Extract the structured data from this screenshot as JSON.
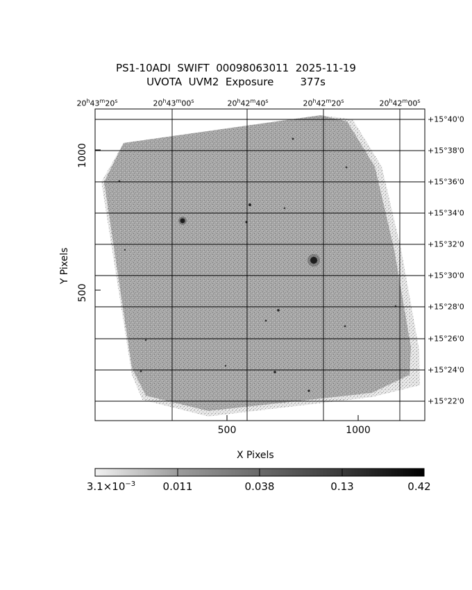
{
  "title": {
    "line1": "PS1-10ADI  SWIFT  00098063011  2025-11-19",
    "line2": "UVOTA  UVM2  Exposure        377s"
  },
  "ra_ticks": [
    {
      "h": "20",
      "m": "43",
      "s": "20"
    },
    {
      "h": "20",
      "m": "43",
      "s": "00"
    },
    {
      "h": "20",
      "m": "42",
      "s": "40"
    },
    {
      "h": "20",
      "m": "42",
      "s": "20"
    },
    {
      "h": "20",
      "m": "42",
      "s": "00"
    }
  ],
  "dec_ticks": [
    "+15°40'0",
    "+15°38'0",
    "+15°36'0",
    "+15°34'0",
    "+15°32'0",
    "+15°30'0",
    "+15°28'0",
    "+15°26'0",
    "+15°24'0",
    "+15°22'0"
  ],
  "x_axis": {
    "label": "X Pixels",
    "ticks": [
      "500",
      "1000"
    ]
  },
  "y_axis": {
    "label": "Y Pixels",
    "ticks": [
      "1000",
      "500"
    ]
  },
  "colorbar": {
    "labels": [
      {
        "mantissa": "3.1×10",
        "exp": "−3"
      },
      {
        "mantissa": "0.011",
        "exp": ""
      },
      {
        "mantissa": "0.038",
        "exp": ""
      },
      {
        "mantissa": "0.13",
        "exp": ""
      },
      {
        "mantissa": "0.42",
        "exp": ""
      }
    ]
  }
}
